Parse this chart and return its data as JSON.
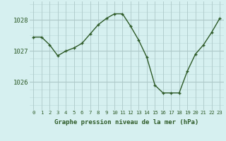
{
  "x": [
    0,
    1,
    2,
    3,
    4,
    5,
    6,
    7,
    8,
    9,
    10,
    11,
    12,
    13,
    14,
    15,
    16,
    17,
    18,
    19,
    20,
    21,
    22,
    23
  ],
  "y": [
    1027.45,
    1027.45,
    1027.2,
    1026.85,
    1027.0,
    1027.1,
    1027.25,
    1027.55,
    1027.85,
    1028.05,
    1028.2,
    1028.2,
    1027.8,
    1027.35,
    1026.8,
    1025.9,
    1025.65,
    1025.65,
    1025.65,
    1026.35,
    1026.9,
    1027.2,
    1027.6,
    1028.05
  ],
  "line_color": "#2d5a27",
  "bg_color": "#d6f0f0",
  "grid_color_major": "#adc8c8",
  "grid_color_minor": "#c0dcdc",
  "xlabel": "Graphe pression niveau de la mer (hPa)",
  "xlabel_color": "#2d5a27",
  "ylabel_ticks": [
    1026,
    1027,
    1028
  ],
  "ylim": [
    1025.1,
    1028.6
  ],
  "xlim": [
    -0.5,
    23.5
  ],
  "tick_color": "#2d5a27",
  "axis_label_fontsize": 6.5,
  "xtick_fontsize": 5.2,
  "ytick_fontsize": 6.5
}
